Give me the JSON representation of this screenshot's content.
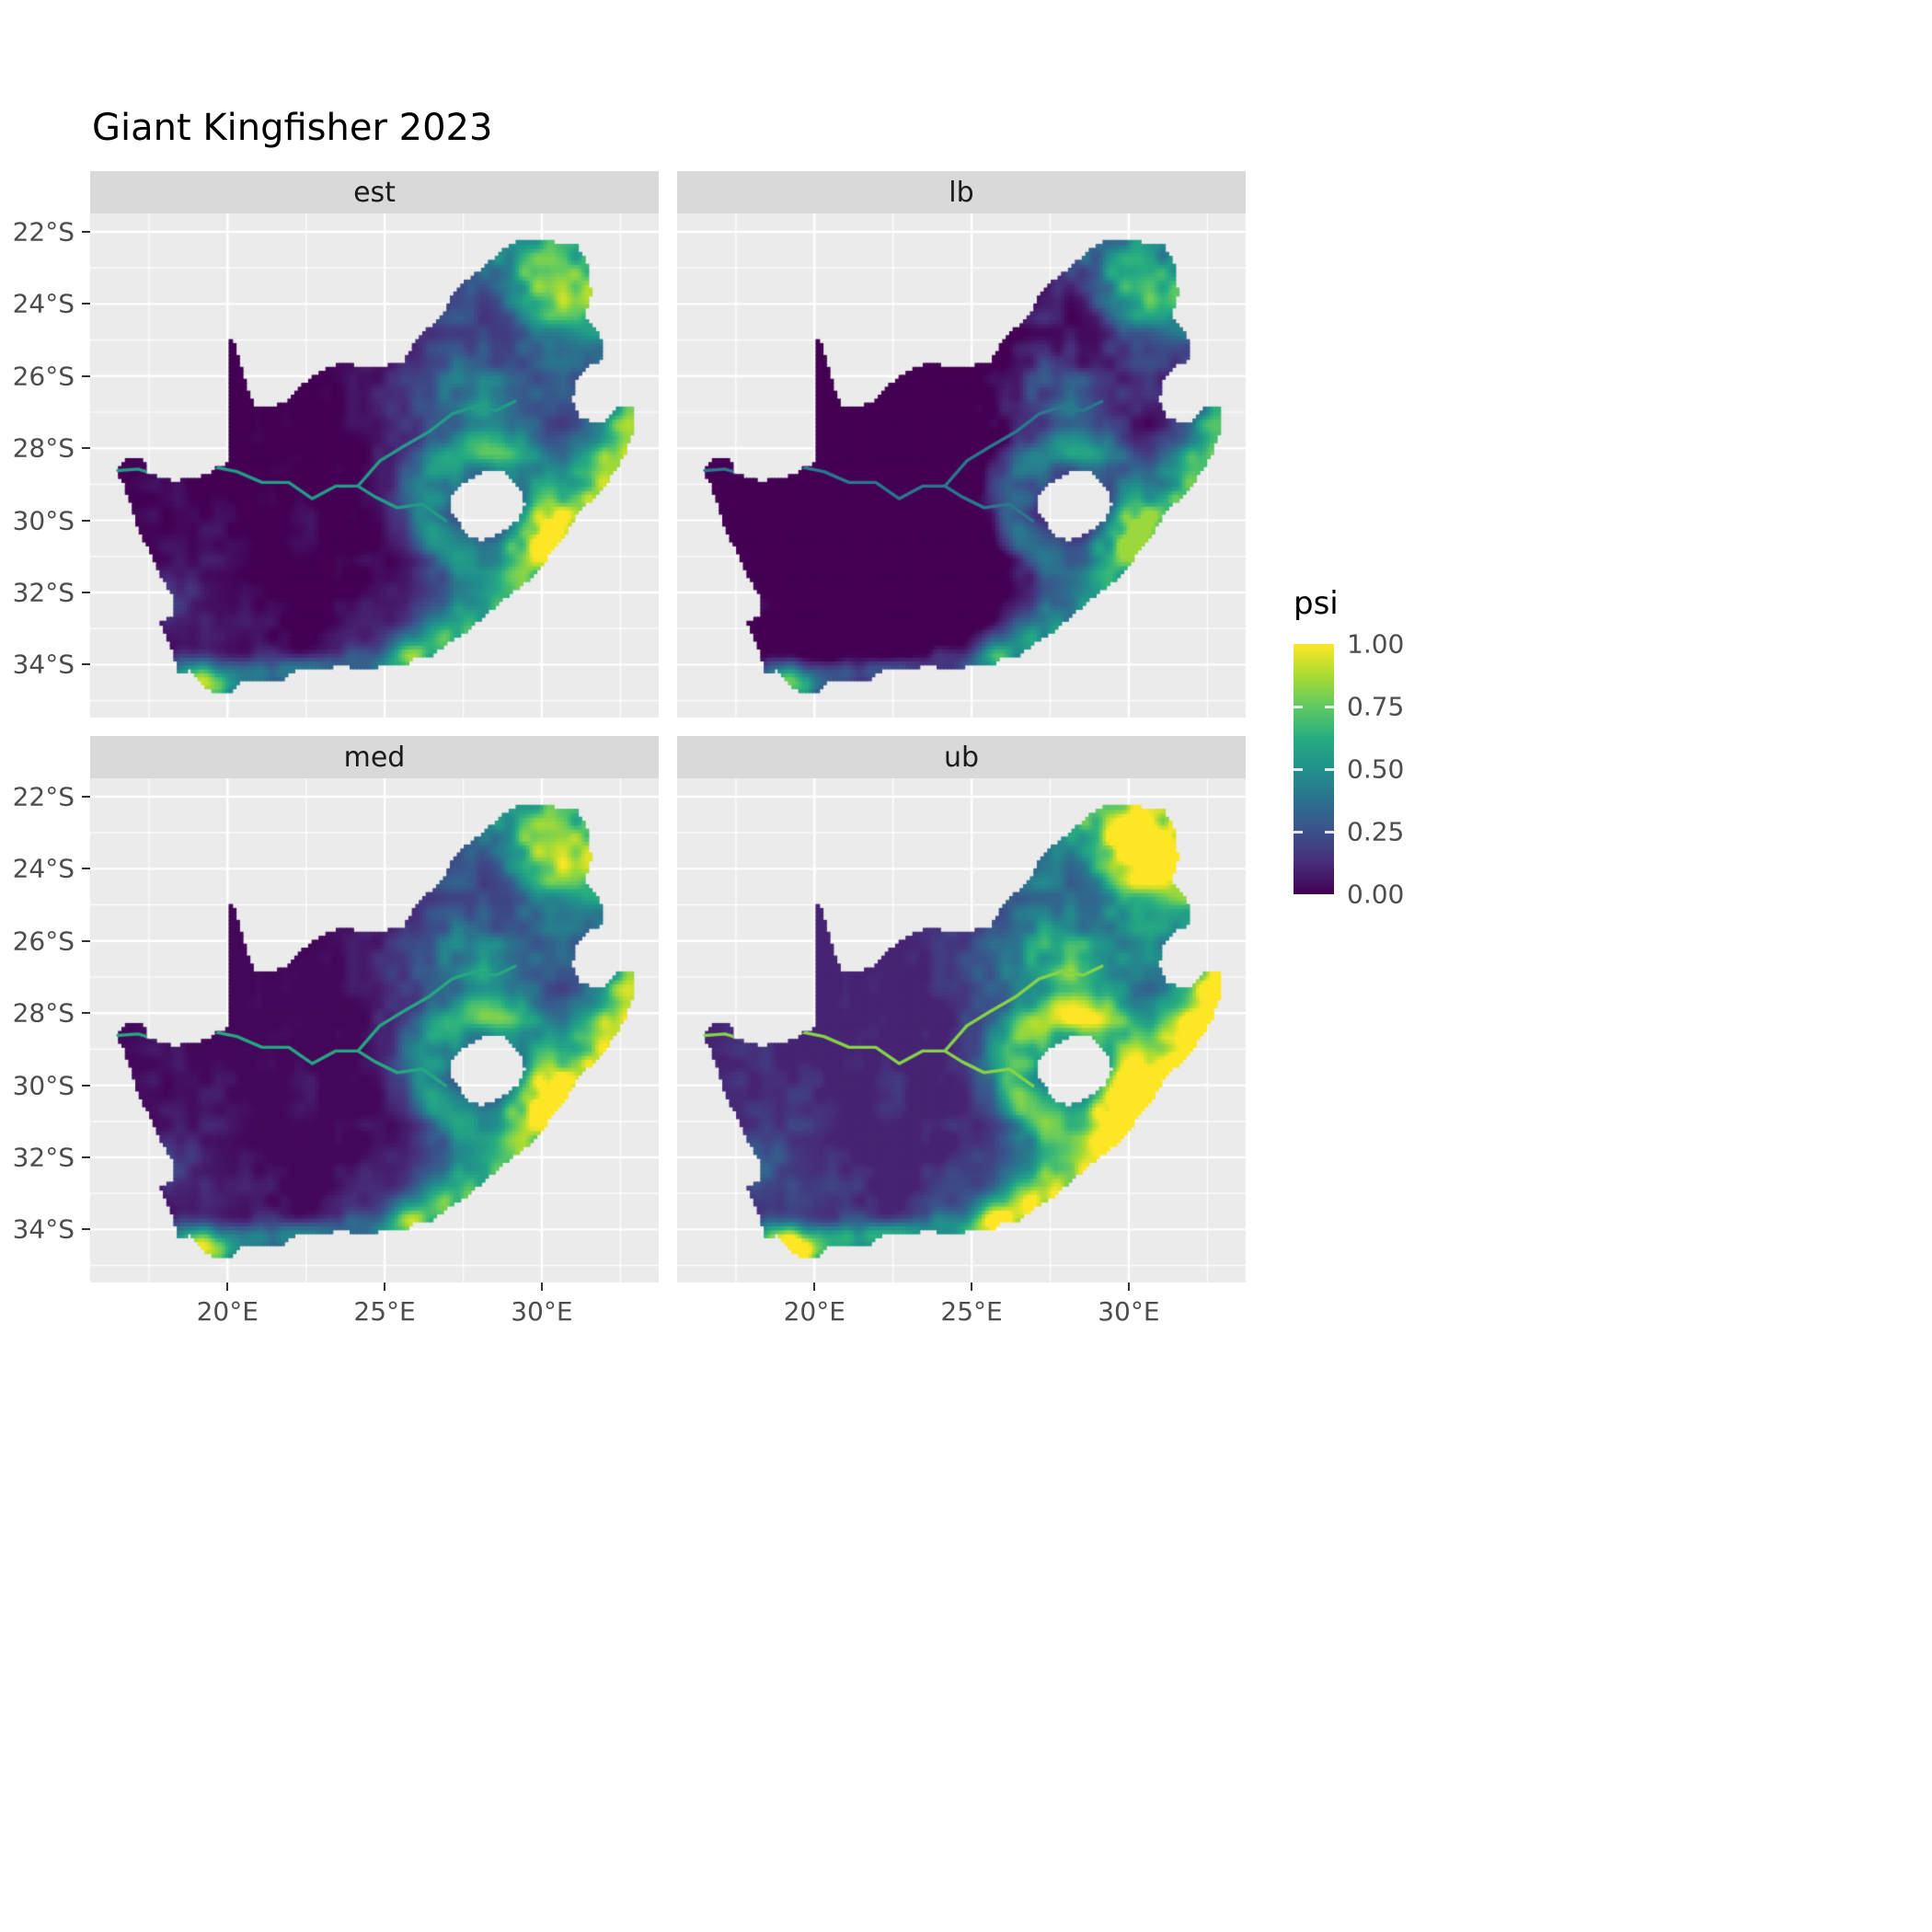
{
  "title": "Giant Kingfisher 2023",
  "facets": [
    {
      "key": "est",
      "label": "est"
    },
    {
      "key": "lb",
      "label": "lb"
    },
    {
      "key": "med",
      "label": "med"
    },
    {
      "key": "ub",
      "label": "ub"
    }
  ],
  "legend": {
    "title": "psi",
    "ticks": [
      {
        "label": "1.00",
        "value": 1.0
      },
      {
        "label": "0.75",
        "value": 0.75
      },
      {
        "label": "0.50",
        "value": 0.5
      },
      {
        "label": "0.25",
        "value": 0.25
      },
      {
        "label": "0.00",
        "value": 0.0
      }
    ]
  },
  "axes": {
    "x_ticks": [
      {
        "label": "20°E",
        "value": 20
      },
      {
        "label": "25°E",
        "value": 25
      },
      {
        "label": "30°E",
        "value": 30
      }
    ],
    "y_ticks": [
      {
        "label": "22°S",
        "value": -22
      },
      {
        "label": "24°S",
        "value": -24
      },
      {
        "label": "26°S",
        "value": -26
      },
      {
        "label": "28°S",
        "value": -28
      },
      {
        "label": "30°S",
        "value": -30
      },
      {
        "label": "32°S",
        "value": -32
      },
      {
        "label": "34°S",
        "value": -34
      }
    ],
    "x_minor": [
      17.5,
      22.5,
      27.5,
      32.5
    ],
    "y_minor": [
      -21,
      -23,
      -25,
      -27,
      -29,
      -31,
      -33,
      -35
    ]
  },
  "colors": {
    "panel_bg": "#ebebeb",
    "strip_bg": "#d9d9d9",
    "grid": "#ffffff",
    "axis_text": "#4d4d4d",
    "tick_mark": "#333333",
    "title_text": "#000000",
    "viridis": [
      "#440154",
      "#472d7b",
      "#3b528b",
      "#2c728e",
      "#21918c",
      "#27ad81",
      "#5ec962",
      "#aadc32",
      "#fde725"
    ]
  },
  "chart_data": {
    "type": "heatmap",
    "title": "Giant Kingfisher 2023",
    "facet_labels": [
      "est",
      "lb",
      "med",
      "ub"
    ],
    "fill_variable": "psi",
    "fill_range": [
      0.0,
      1.0
    ],
    "colorbar_ticks": [
      0.0,
      0.25,
      0.5,
      0.75,
      1.0
    ],
    "x_tick_labels": [
      "20°E",
      "25°E",
      "30°E"
    ],
    "y_tick_labels": [
      "22°S",
      "24°S",
      "26°S",
      "28°S",
      "30°S",
      "32°S",
      "34°S"
    ],
    "region": "South Africa raster map with interior hole (Lesotho) and eastern notch (Eswatini)",
    "pattern_summary": {
      "est": "near-zero psi across arid west and central interior; moderate-high psi along eastern escarpment, around the Lesotho hole, northeast corner and south/southwest coast",
      "lb": "darkest facet; high psi restricted to far northeast and narrow east-coast band",
      "med": "very similar to est, slightly brighter",
      "ub": "brightest facet; broad saturated high-psi band over the whole east and along south coast"
    },
    "rivers_note": "teal river lines (Orange and Vaal) visible across the dark western interior",
    "south_africa_outline_lonlat": [
      [
        16.45,
        -28.6
      ],
      [
        16.8,
        -28.32
      ],
      [
        17.1,
        -28.25
      ],
      [
        17.4,
        -28.38
      ],
      [
        17.42,
        -28.68
      ],
      [
        17.75,
        -28.78
      ],
      [
        18.25,
        -28.9
      ],
      [
        18.9,
        -28.85
      ],
      [
        19.35,
        -28.73
      ],
      [
        19.7,
        -28.5
      ],
      [
        19.99,
        -28.4
      ],
      [
        19.99,
        -24.78
      ],
      [
        20.18,
        -25.05
      ],
      [
        20.42,
        -25.7
      ],
      [
        20.62,
        -26.35
      ],
      [
        20.82,
        -26.82
      ],
      [
        21.35,
        -26.86
      ],
      [
        21.95,
        -26.66
      ],
      [
        22.55,
        -26.1
      ],
      [
        22.95,
        -25.87
      ],
      [
        23.65,
        -25.62
      ],
      [
        24.35,
        -25.77
      ],
      [
        24.95,
        -25.72
      ],
      [
        25.58,
        -25.62
      ],
      [
        25.9,
        -25.15
      ],
      [
        26.4,
        -24.65
      ],
      [
        26.85,
        -24.3
      ],
      [
        27.15,
        -23.7
      ],
      [
        27.7,
        -23.26
      ],
      [
        28.25,
        -22.9
      ],
      [
        28.95,
        -22.35
      ],
      [
        29.45,
        -22.18
      ],
      [
        29.98,
        -22.22
      ],
      [
        30.55,
        -22.3
      ],
      [
        31.1,
        -22.35
      ],
      [
        31.45,
        -22.95
      ],
      [
        31.55,
        -23.65
      ],
      [
        31.35,
        -24.4
      ],
      [
        31.85,
        -24.9
      ],
      [
        31.97,
        -25.52
      ],
      [
        31.45,
        -25.72
      ],
      [
        31.08,
        -26.12
      ],
      [
        30.95,
        -26.7
      ],
      [
        31.18,
        -27.12
      ],
      [
        31.62,
        -27.32
      ],
      [
        31.98,
        -27.32
      ],
      [
        32.15,
        -27.05
      ],
      [
        32.42,
        -26.85
      ],
      [
        32.88,
        -26.85
      ],
      [
        32.92,
        -27.4
      ],
      [
        32.7,
        -27.98
      ],
      [
        32.52,
        -28.32
      ],
      [
        32.28,
        -28.62
      ],
      [
        32.02,
        -28.98
      ],
      [
        31.72,
        -29.32
      ],
      [
        31.28,
        -29.62
      ],
      [
        31.02,
        -29.92
      ],
      [
        30.72,
        -30.38
      ],
      [
        30.28,
        -30.88
      ],
      [
        29.98,
        -31.22
      ],
      [
        29.52,
        -31.68
      ],
      [
        29.05,
        -31.98
      ],
      [
        28.55,
        -32.32
      ],
      [
        28.05,
        -32.72
      ],
      [
        27.55,
        -33.08
      ],
      [
        27.05,
        -33.32
      ],
      [
        26.45,
        -33.78
      ],
      [
        25.95,
        -33.78
      ],
      [
        25.65,
        -34.05
      ],
      [
        24.95,
        -34.02
      ],
      [
        24.18,
        -34.12
      ],
      [
        23.6,
        -33.98
      ],
      [
        22.98,
        -34.12
      ],
      [
        22.25,
        -34.06
      ],
      [
        21.68,
        -34.42
      ],
      [
        20.95,
        -34.46
      ],
      [
        20.45,
        -34.46
      ],
      [
        20.0,
        -34.82
      ],
      [
        19.58,
        -34.76
      ],
      [
        19.28,
        -34.62
      ],
      [
        19.08,
        -34.36
      ],
      [
        18.8,
        -34.1
      ],
      [
        18.46,
        -34.32
      ],
      [
        18.35,
        -33.92
      ],
      [
        18.05,
        -33.18
      ],
      [
        17.86,
        -32.8
      ],
      [
        18.28,
        -32.62
      ],
      [
        18.26,
        -32.05
      ],
      [
        17.9,
        -31.62
      ],
      [
        17.55,
        -30.92
      ],
      [
        17.2,
        -30.32
      ],
      [
        16.95,
        -29.65
      ],
      [
        16.7,
        -29.02
      ]
    ],
    "lesotho_hole_lonlat": [
      [
        27.55,
        -28.9
      ],
      [
        28.1,
        -28.66
      ],
      [
        28.68,
        -28.58
      ],
      [
        29.12,
        -28.9
      ],
      [
        29.38,
        -29.25
      ],
      [
        29.46,
        -29.6
      ],
      [
        29.26,
        -29.96
      ],
      [
        28.94,
        -30.22
      ],
      [
        28.48,
        -30.42
      ],
      [
        28.08,
        -30.56
      ],
      [
        27.72,
        -30.46
      ],
      [
        27.44,
        -30.2
      ],
      [
        27.18,
        -29.88
      ],
      [
        27.02,
        -29.52
      ],
      [
        27.18,
        -29.18
      ]
    ],
    "rivers_lonlat": {
      "orange": [
        [
          26.95,
          -30.02
        ],
        [
          26.2,
          -29.55
        ],
        [
          25.4,
          -29.65
        ],
        [
          24.7,
          -29.35
        ],
        [
          24.15,
          -29.05
        ],
        [
          23.45,
          -29.05
        ],
        [
          22.7,
          -29.4
        ],
        [
          21.95,
          -28.95
        ],
        [
          21.1,
          -28.95
        ],
        [
          20.3,
          -28.65
        ],
        [
          19.45,
          -28.5
        ],
        [
          18.75,
          -28.65
        ],
        [
          17.95,
          -28.78
        ],
        [
          17.15,
          -28.58
        ],
        [
          16.5,
          -28.62
        ]
      ],
      "vaal": [
        [
          24.15,
          -29.05
        ],
        [
          24.85,
          -28.35
        ],
        [
          25.6,
          -27.95
        ],
        [
          26.4,
          -27.55
        ],
        [
          27.15,
          -27.05
        ],
        [
          27.85,
          -26.85
        ],
        [
          28.55,
          -26.95
        ],
        [
          29.15,
          -26.7
        ]
      ]
    }
  }
}
